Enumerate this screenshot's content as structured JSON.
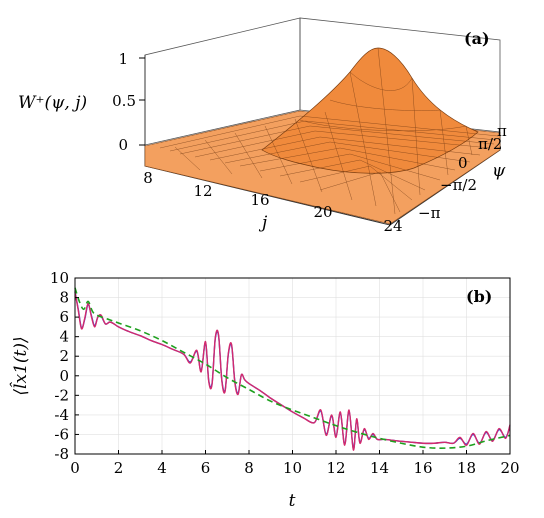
{
  "chart_data": [
    {
      "type": "surface",
      "panel_label": "(a)",
      "zlabel": "W⁺(ψ, j)",
      "xlabel": "j",
      "ylabel": "ψ",
      "x_ticks": [
        "8",
        "12",
        "16",
        "20",
        "24"
      ],
      "y_ticks": [
        "−π",
        "−π/2",
        "0",
        "π/2",
        "π"
      ],
      "z_ticks": [
        "0",
        "0.5",
        "1"
      ],
      "xlim": [
        8,
        24
      ],
      "ylim": [
        -3.1416,
        3.1416
      ],
      "zlim": [
        0,
        1
      ],
      "peak": {
        "j": 18.5,
        "psi": 0,
        "value": 1.0
      },
      "surface_color": "#f08a3c"
    },
    {
      "type": "line",
      "panel_label": "(b)",
      "xlabel": "t",
      "ylabel": "⟨l̂x1(t)⟩",
      "xlim": [
        0,
        20
      ],
      "ylim": [
        -8,
        10
      ],
      "x_ticks": [
        "0",
        "2",
        "4",
        "6",
        "8",
        "10",
        "12",
        "14",
        "16",
        "18",
        "20"
      ],
      "y_ticks": [
        "-8",
        "-6",
        "-4",
        "-2",
        "0",
        "2",
        "4",
        "6",
        "8",
        "10"
      ],
      "grid": true,
      "series": [
        {
          "color": "#2a3fd8",
          "style": "solid",
          "x": [
            0,
            0.15,
            0.3,
            0.45,
            0.6,
            0.75,
            0.9,
            1.05,
            1.2,
            1.4,
            1.6,
            1.8,
            2.0,
            2.5,
            3.0,
            3.5,
            4.0,
            4.5,
            5.0,
            5.3,
            5.6,
            5.8,
            6.0,
            6.15,
            6.3,
            6.45,
            6.6,
            6.75,
            6.9,
            7.05,
            7.2,
            7.35,
            7.5,
            7.65,
            7.8,
            8.0,
            8.5,
            9.0,
            9.5,
            10.0,
            10.5,
            11.0,
            11.3,
            11.55,
            11.8,
            12.0,
            12.2,
            12.4,
            12.6,
            12.8,
            12.95,
            13.1,
            13.3,
            13.5,
            13.7,
            13.9,
            14.2,
            14.6,
            15.0,
            15.5,
            16.0,
            16.5,
            17.0,
            17.4,
            17.7,
            18.0,
            18.3,
            18.6,
            18.9,
            19.2,
            19.5,
            19.8,
            20.0
          ],
          "y": [
            8.6,
            6.8,
            4.9,
            5.8,
            7.3,
            6.2,
            5.1,
            6.0,
            6.1,
            5.3,
            5.5,
            5.3,
            5.0,
            4.5,
            4.1,
            3.6,
            3.2,
            2.7,
            2.2,
            1.4,
            2.5,
            0.5,
            3.4,
            -0.5,
            -0.8,
            3.8,
            4.1,
            -0.4,
            -1.5,
            2.2,
            3.1,
            -0.6,
            -1.8,
            0.1,
            -0.4,
            -0.8,
            -1.5,
            -2.3,
            -3.0,
            -3.7,
            -4.3,
            -4.8,
            -3.6,
            -6.0,
            -4.1,
            -6.2,
            -3.8,
            -7.0,
            -3.6,
            -7.5,
            -4.5,
            -6.8,
            -5.5,
            -6.4,
            -6.0,
            -6.5,
            -6.5,
            -6.6,
            -6.7,
            -6.8,
            -6.9,
            -6.9,
            -6.8,
            -6.9,
            -6.4,
            -7.0,
            -6.0,
            -6.9,
            -5.8,
            -6.6,
            -5.5,
            -6.3,
            -5.1
          ]
        },
        {
          "color": "#d42a6c",
          "style": "solid",
          "x": [
            0,
            0.15,
            0.3,
            0.45,
            0.6,
            0.75,
            0.9,
            1.05,
            1.2,
            1.4,
            1.6,
            1.8,
            2.0,
            2.5,
            3.0,
            3.5,
            4.0,
            4.5,
            5.0,
            5.3,
            5.6,
            5.8,
            6.0,
            6.15,
            6.3,
            6.45,
            6.6,
            6.75,
            6.9,
            7.05,
            7.2,
            7.35,
            7.5,
            7.65,
            7.8,
            8.0,
            8.5,
            9.0,
            9.5,
            10.0,
            10.5,
            11.0,
            11.3,
            11.55,
            11.8,
            12.0,
            12.2,
            12.4,
            12.6,
            12.8,
            12.95,
            13.1,
            13.3,
            13.5,
            13.7,
            13.9,
            14.2,
            14.6,
            15.0,
            15.5,
            16.0,
            16.5,
            17.0,
            17.4,
            17.7,
            18.0,
            18.3,
            18.6,
            18.9,
            19.2,
            19.5,
            19.8,
            20.0
          ],
          "y": [
            8.6,
            6.7,
            4.8,
            5.9,
            7.4,
            6.1,
            5.0,
            6.0,
            6.2,
            5.3,
            5.5,
            5.3,
            5.0,
            4.5,
            4.1,
            3.6,
            3.2,
            2.7,
            2.2,
            1.3,
            2.6,
            0.4,
            3.5,
            -0.6,
            -0.9,
            3.9,
            4.2,
            -0.5,
            -1.6,
            2.3,
            3.2,
            -0.7,
            -1.9,
            0.1,
            -0.4,
            -0.8,
            -1.5,
            -2.3,
            -3.0,
            -3.7,
            -4.3,
            -4.8,
            -3.5,
            -6.1,
            -4.0,
            -6.3,
            -3.7,
            -7.1,
            -3.5,
            -7.6,
            -4.4,
            -6.9,
            -5.4,
            -6.5,
            -5.9,
            -6.5,
            -6.5,
            -6.6,
            -6.7,
            -6.8,
            -6.9,
            -6.9,
            -6.8,
            -6.9,
            -6.3,
            -7.1,
            -5.9,
            -7.0,
            -5.7,
            -6.7,
            -5.4,
            -6.4,
            -5.0
          ]
        },
        {
          "color": "#1ea01e",
          "style": "dashed",
          "x": [
            0,
            0.2,
            0.4,
            0.6,
            0.8,
            1.0,
            1.5,
            2.0,
            3.0,
            4.0,
            5.0,
            6.0,
            7.0,
            8.0,
            9.0,
            10.0,
            11.0,
            12.0,
            13.0,
            14.0,
            15.0,
            16.0,
            17.0,
            18.0,
            19.0,
            20.0
          ],
          "y": [
            9.0,
            7.6,
            6.8,
            7.6,
            6.6,
            6.2,
            5.8,
            5.4,
            4.6,
            3.6,
            2.4,
            1.2,
            -0.2,
            -1.4,
            -2.6,
            -3.5,
            -4.3,
            -5.1,
            -5.8,
            -6.4,
            -6.9,
            -7.3,
            -7.4,
            -7.2,
            -6.6,
            -6.1
          ]
        }
      ]
    }
  ]
}
